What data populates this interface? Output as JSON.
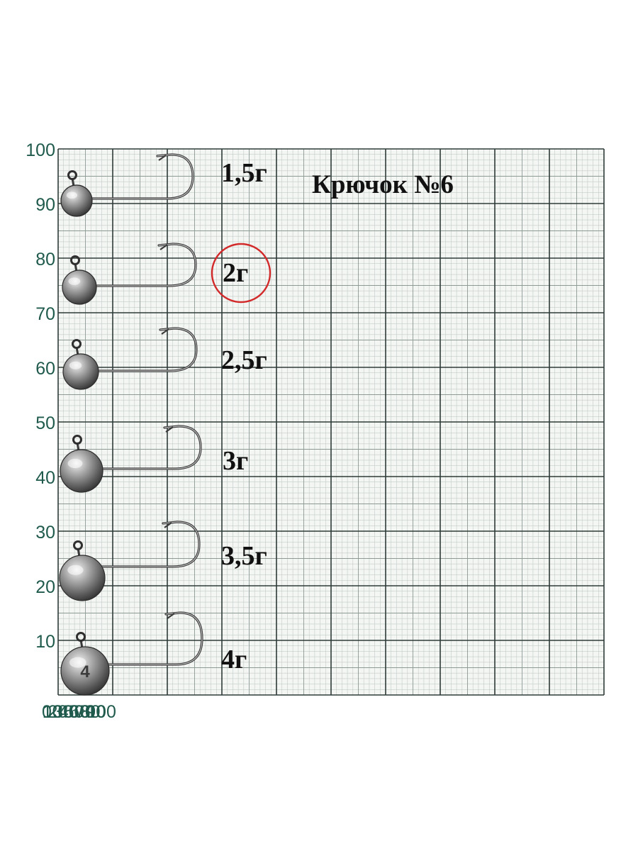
{
  "title": "Крючок №6",
  "colors": {
    "paper": "#f4f6f3",
    "grid_fine": "#c4ccc8",
    "grid_mid": "#8e9a96",
    "grid_major": "#2e3b38",
    "tick_text": "#1f5a4c",
    "highlight": "#d22a2a"
  },
  "axis": {
    "x_ticks": [
      "0",
      "10",
      "20",
      "30",
      "40",
      "50",
      "60",
      "70",
      "80",
      "90",
      "100"
    ],
    "y_ticks": [
      "10",
      "20",
      "30",
      "40",
      "50",
      "60",
      "70",
      "80",
      "90",
      "100"
    ]
  },
  "jigs": [
    {
      "label": "1,5г",
      "head_mark": "",
      "highlighted": false
    },
    {
      "label": "2г",
      "head_mark": "",
      "highlighted": true
    },
    {
      "label": "2,5г",
      "head_mark": "",
      "highlighted": false
    },
    {
      "label": "3г",
      "head_mark": "",
      "highlighted": false
    },
    {
      "label": "3,5г",
      "head_mark": "",
      "highlighted": false
    },
    {
      "label": "4г",
      "head_mark": "4",
      "highlighted": false
    }
  ]
}
